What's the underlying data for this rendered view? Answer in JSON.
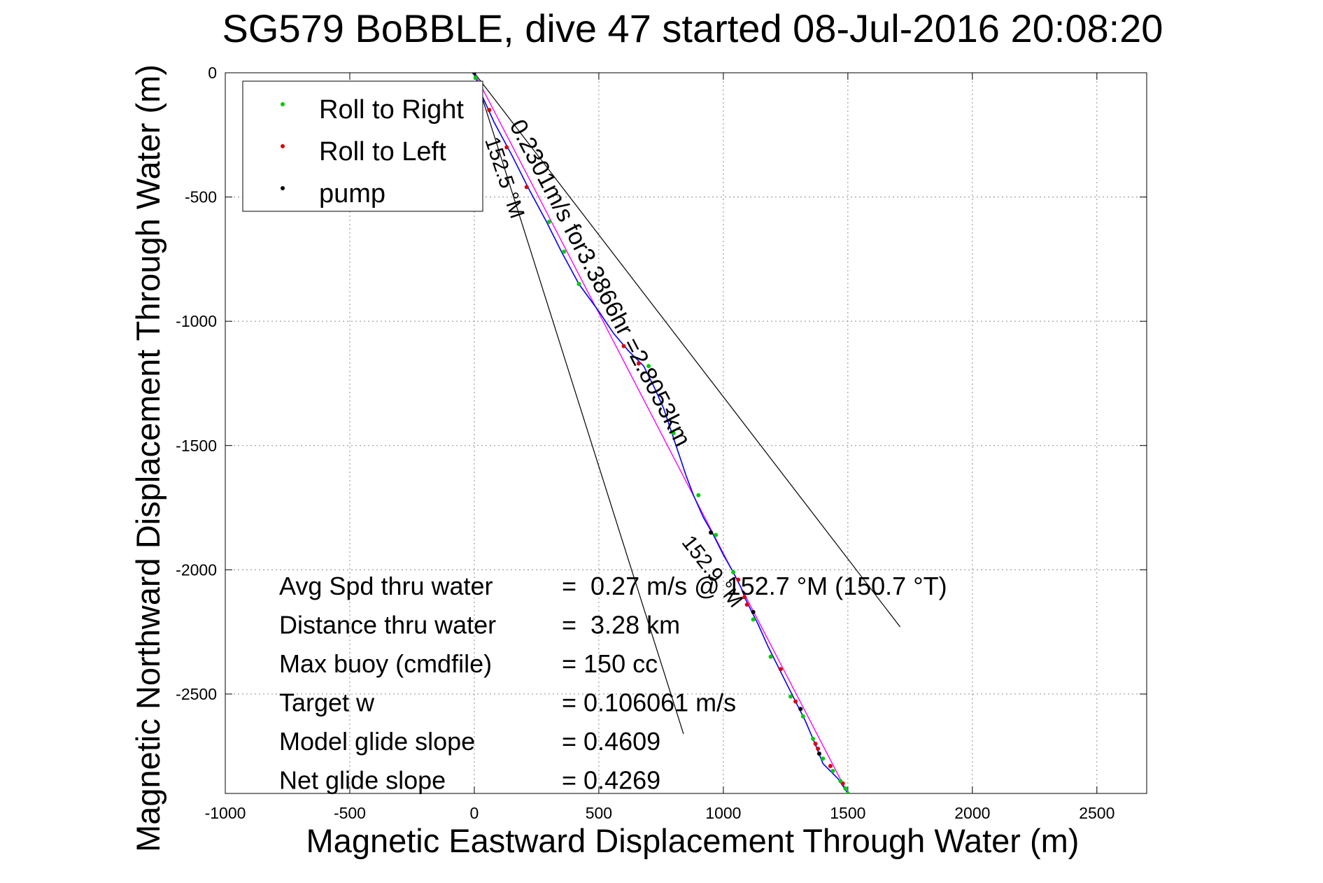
{
  "chart_data": {
    "type": "line",
    "title": "SG579 BoBBLE, dive 47 started 08-Jul-2016 20:08:20",
    "xlabel": "Magnetic Eastward Displacement Through Water (m)",
    "ylabel": "Magnetic Northward Displacement Through Water (m)",
    "xlim": [
      -1000,
      2700
    ],
    "ylim": [
      -2900,
      0
    ],
    "xticks": [
      -1000,
      -500,
      0,
      500,
      1000,
      1500,
      2000,
      2500
    ],
    "yticks": [
      0,
      -500,
      -1000,
      -1500,
      -2000,
      -2500
    ],
    "xtick_labels": [
      "-1000",
      "-500",
      "0",
      "500",
      "1000",
      "1500",
      "2000",
      "2500"
    ],
    "ytick_labels": [
      "0",
      "-500",
      "-1000",
      "-1500",
      "-2000",
      "-2500"
    ],
    "grid": true,
    "legend_position": "top-left",
    "legend": [
      {
        "label": "Roll to Right",
        "color": "#00cc00"
      },
      {
        "label": "Roll to Left",
        "color": "#dd0000"
      },
      {
        "label": "pump",
        "color": "#000000"
      }
    ],
    "track": {
      "color": "#0000ff",
      "x": [
        0,
        30,
        80,
        150,
        220,
        290,
        350,
        420,
        500,
        560,
        620,
        680,
        720,
        760,
        790,
        820,
        850,
        880,
        920,
        960,
        1000,
        1040,
        1070,
        1090,
        1110,
        1140,
        1180,
        1220,
        1260,
        1300,
        1330,
        1360,
        1380,
        1400,
        1430,
        1460,
        1480,
        1500,
        1510
      ],
      "y": [
        0,
        -90,
        -200,
        -330,
        -470,
        -600,
        -720,
        -850,
        -960,
        -1050,
        -1120,
        -1180,
        -1260,
        -1350,
        -1440,
        -1530,
        -1620,
        -1700,
        -1790,
        -1860,
        -1940,
        -2010,
        -2070,
        -2120,
        -2160,
        -2220,
        -2310,
        -2390,
        -2470,
        -2550,
        -2610,
        -2680,
        -2730,
        -2780,
        -2810,
        -2840,
        -2870,
        -2900,
        -2920
      ]
    },
    "direct_line": {
      "color": "#ff00ff",
      "x": [
        0,
        1510
      ],
      "y": [
        0,
        -2920
      ]
    },
    "roll_right_points": {
      "x": [
        5,
        10,
        300,
        360,
        420,
        700,
        800,
        900,
        970,
        1040,
        1120,
        1190,
        1270,
        1320,
        1360,
        1400,
        1440,
        1470,
        1490,
        1500
      ],
      "y": [
        -20,
        -40,
        -600,
        -720,
        -850,
        -1180,
        -1450,
        -1700,
        -1860,
        -2010,
        -2200,
        -2350,
        -2510,
        -2590,
        -2680,
        -2760,
        -2810,
        -2850,
        -2880,
        -2900
      ]
    },
    "roll_left_points": {
      "x": [
        60,
        130,
        210,
        600,
        660,
        950,
        1060,
        1085,
        1095,
        1230,
        1290,
        1370,
        1380,
        1430,
        1480
      ],
      "y": [
        -150,
        -300,
        -460,
        -1100,
        -1170,
        -1850,
        -2040,
        -2110,
        -2140,
        -2400,
        -2530,
        -2700,
        -2720,
        -2790,
        -2860
      ]
    },
    "pump_points": {
      "x": [
        0,
        20,
        950,
        1120,
        1310,
        1385,
        1505
      ],
      "y": [
        0,
        -60,
        -1850,
        -2170,
        -2560,
        -2740,
        -2910
      ]
    },
    "cone_lines": [
      {
        "color": "#000000",
        "x": [
          0,
          1710
        ],
        "y": [
          0,
          -2230
        ]
      },
      {
        "color": "#000000",
        "x": [
          0,
          840
        ],
        "y": [
          0,
          -2660
        ]
      }
    ],
    "annotations": [
      {
        "text": "0.2301m/s for3.3866hr =2.8053km",
        "x": 140,
        "y": -210,
        "rotation_deg": 62.5
      },
      {
        "text": "152.5 °M",
        "x": 42,
        "y": -270,
        "rotation_deg": 71.5
      },
      {
        "text": "152.9 °M",
        "x": 830,
        "y": -1890,
        "rotation_deg": 52
      }
    ],
    "stats": [
      {
        "label": "Avg Spd thru water",
        "value": "=  0.27 m/s @ 152.7 °M (150.7 °T)"
      },
      {
        "label": "Distance thru water",
        "value": "=  3.28 km"
      },
      {
        "label": "Max buoy (cmdfile)",
        "value": "= 150 cc"
      },
      {
        "label": "Target w",
        "value": "= 0.106061 m/s"
      },
      {
        "label": "Model glide slope",
        "value": "= 0.4609"
      },
      {
        "label": "Net glide slope",
        "value": "= 0.4269"
      }
    ]
  }
}
